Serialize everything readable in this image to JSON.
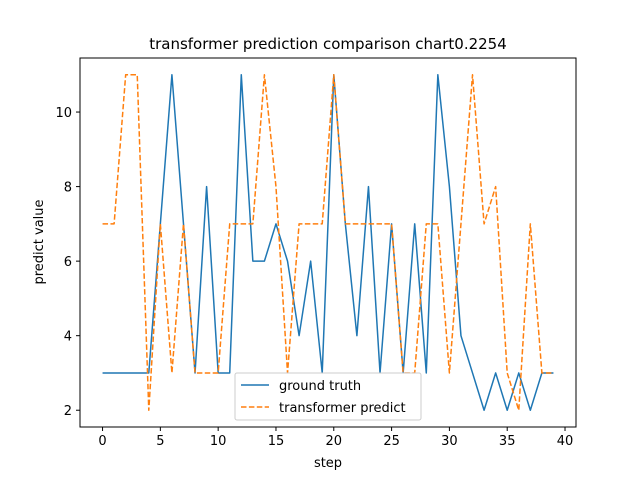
{
  "chart_data": {
    "type": "line",
    "title": "transformer prediction comparison chart0.2254",
    "xlabel": "step",
    "ylabel": "predict value",
    "xlim": [
      -1.95,
      40.95
    ],
    "ylim": [
      1.55,
      11.45
    ],
    "xticks": [
      0,
      5,
      10,
      15,
      20,
      25,
      30,
      35,
      40
    ],
    "yticks": [
      2,
      4,
      6,
      8,
      10
    ],
    "grid": false,
    "legend_position": "bottom-center",
    "x": [
      0,
      1,
      2,
      3,
      4,
      5,
      6,
      7,
      8,
      9,
      10,
      11,
      12,
      13,
      14,
      15,
      16,
      17,
      18,
      19,
      20,
      21,
      22,
      23,
      24,
      25,
      26,
      27,
      28,
      29,
      30,
      31,
      32,
      33,
      34,
      35,
      36,
      37,
      38,
      39
    ],
    "series": [
      {
        "name": "ground truth",
        "color": "#1f77b4",
        "style": "solid",
        "values": [
          3,
          3,
          3,
          3,
          3,
          7,
          11,
          7,
          3,
          8,
          3,
          3,
          11,
          6,
          6,
          7,
          6,
          4,
          6,
          3,
          11,
          7,
          4,
          8,
          3,
          7,
          3,
          7,
          3,
          11,
          8,
          4,
          3,
          2,
          3,
          2,
          3,
          2,
          3,
          3
        ]
      },
      {
        "name": "transformer predict",
        "color": "#ff7f0e",
        "style": "dashed",
        "values": [
          7,
          7,
          11,
          11,
          2,
          7,
          3,
          7,
          3,
          3,
          3,
          7,
          7,
          7,
          11,
          8,
          3,
          7,
          7,
          7,
          11,
          7,
          7,
          7,
          7,
          7,
          3,
          3,
          7,
          7,
          3,
          7,
          11,
          7,
          8,
          3,
          2,
          7,
          3,
          3
        ]
      }
    ]
  }
}
